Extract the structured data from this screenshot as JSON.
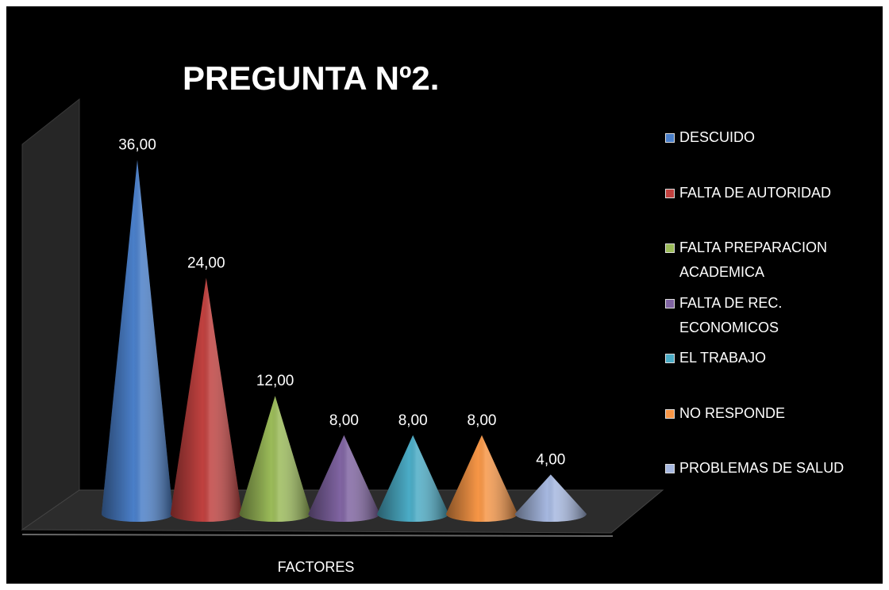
{
  "chart_data": {
    "type": "cone",
    "title": "PREGUNTA Nº2.",
    "x_label": "FACTORES",
    "categories": [
      "DESCUIDO",
      "FALTA DE AUTORIDAD",
      "FALTA PREPARACION ACADEMICA",
      "FALTA DE REC. ECONOMICOS",
      "EL TRABAJO",
      "NO RESPONDE",
      "PROBLEMAS DE SALUD"
    ],
    "values": [
      36,
      24,
      12,
      8,
      8,
      8,
      4
    ],
    "value_labels": [
      "36,00",
      "24,00",
      "12,00",
      "8,00",
      "8,00",
      "8,00",
      "4,00"
    ],
    "colors": [
      "#4a7fc9",
      "#c0413f",
      "#9bbb59",
      "#8064a2",
      "#4bacc6",
      "#f79646",
      "#a6b8e0"
    ],
    "legend": "right"
  }
}
